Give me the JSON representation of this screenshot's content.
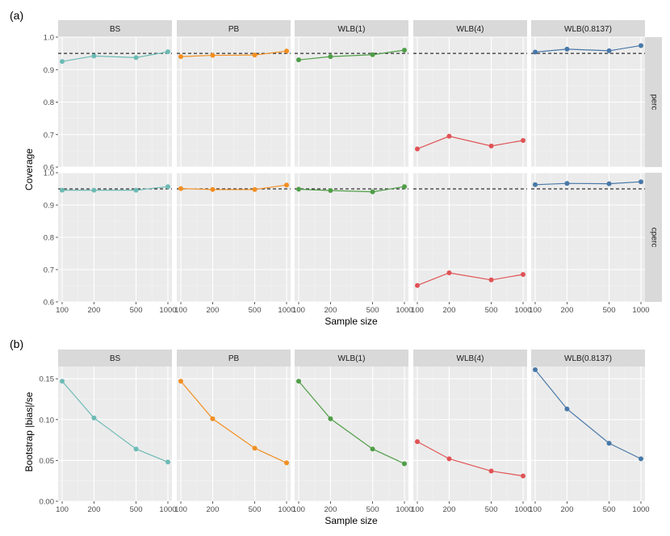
{
  "figure": {
    "panel_labels": [
      "(a)",
      "(b)"
    ],
    "strip_labels": [
      "BS",
      "PB",
      "WLB(1)",
      "WLB(4)",
      "WLB(0.8137)"
    ],
    "row_strip_labels": [
      "perc",
      "cperc"
    ],
    "colors": {
      "BS": "#6dbbb6",
      "PB": "#f28f22",
      "WLB(1)": "#4f9e47",
      "WLB(4)": "#e05355",
      "WLB(0.8137)": "#4878a8"
    },
    "panel_bg": "#ebebeb",
    "strip_bg": "#d9d9d9"
  },
  "chart_data": [
    {
      "type": "line",
      "panel": "(a)",
      "xlabel": "Sample size",
      "ylabel": "Coverage",
      "x": [
        100,
        200,
        500,
        1000
      ],
      "x_scale": "log",
      "x_tick_labels": [
        "100",
        "200",
        "500",
        "1000"
      ],
      "ylim": [
        0.6,
        1.0
      ],
      "y_ticks": [
        0.6,
        0.7,
        0.8,
        0.9,
        1.0
      ],
      "y_tick_labels": [
        "0.6",
        "0.7",
        "0.8",
        "0.9",
        "1.0"
      ],
      "reference_line": 0.95,
      "facets": {
        "columns": [
          "BS",
          "PB",
          "WLB(1)",
          "WLB(4)",
          "WLB(0.8137)"
        ],
        "rows": [
          "perc",
          "cperc"
        ]
      },
      "series": [
        {
          "method": "BS",
          "row": "perc",
          "values": [
            0.925,
            0.942,
            0.937,
            0.955
          ]
        },
        {
          "method": "PB",
          "row": "perc",
          "values": [
            0.94,
            0.944,
            0.945,
            0.957
          ]
        },
        {
          "method": "WLB(1)",
          "row": "perc",
          "values": [
            0.93,
            0.94,
            0.946,
            0.96
          ]
        },
        {
          "method": "WLB(4)",
          "row": "perc",
          "values": [
            0.656,
            0.695,
            0.665,
            0.682
          ]
        },
        {
          "method": "WLB(0.8137)",
          "row": "perc",
          "values": [
            0.954,
            0.963,
            0.958,
            0.974
          ]
        },
        {
          "method": "BS",
          "row": "cperc",
          "values": [
            0.946,
            0.946,
            0.946,
            0.957
          ]
        },
        {
          "method": "PB",
          "row": "cperc",
          "values": [
            0.951,
            0.948,
            0.948,
            0.962
          ]
        },
        {
          "method": "WLB(1)",
          "row": "cperc",
          "values": [
            0.949,
            0.945,
            0.941,
            0.957
          ]
        },
        {
          "method": "WLB(4)",
          "row": "cperc",
          "values": [
            0.651,
            0.69,
            0.668,
            0.685
          ]
        },
        {
          "method": "WLB(0.8137)",
          "row": "cperc",
          "values": [
            0.963,
            0.967,
            0.966,
            0.972
          ]
        }
      ]
    },
    {
      "type": "line",
      "panel": "(b)",
      "xlabel": "Sample size",
      "ylabel": "Bootstrap |bias|/se",
      "x": [
        100,
        200,
        500,
        1000
      ],
      "x_scale": "log",
      "x_tick_labels": [
        "100",
        "200",
        "500",
        "1000"
      ],
      "ylim": [
        0,
        0.165
      ],
      "y_ticks": [
        0,
        0.05,
        0.1,
        0.15
      ],
      "y_tick_labels": [
        "0.00",
        "0.05",
        "0.10",
        "0.15"
      ],
      "facets": {
        "columns": [
          "BS",
          "PB",
          "WLB(1)",
          "WLB(4)",
          "WLB(0.8137)"
        ]
      },
      "series": [
        {
          "method": "BS",
          "values": [
            0.147,
            0.102,
            0.064,
            0.048
          ]
        },
        {
          "method": "PB",
          "values": [
            0.147,
            0.101,
            0.065,
            0.047
          ]
        },
        {
          "method": "WLB(1)",
          "values": [
            0.147,
            0.101,
            0.064,
            0.046
          ]
        },
        {
          "method": "WLB(4)",
          "values": [
            0.073,
            0.052,
            0.037,
            0.031
          ]
        },
        {
          "method": "WLB(0.8137)",
          "values": [
            0.161,
            0.113,
            0.071,
            0.052
          ]
        }
      ]
    }
  ]
}
